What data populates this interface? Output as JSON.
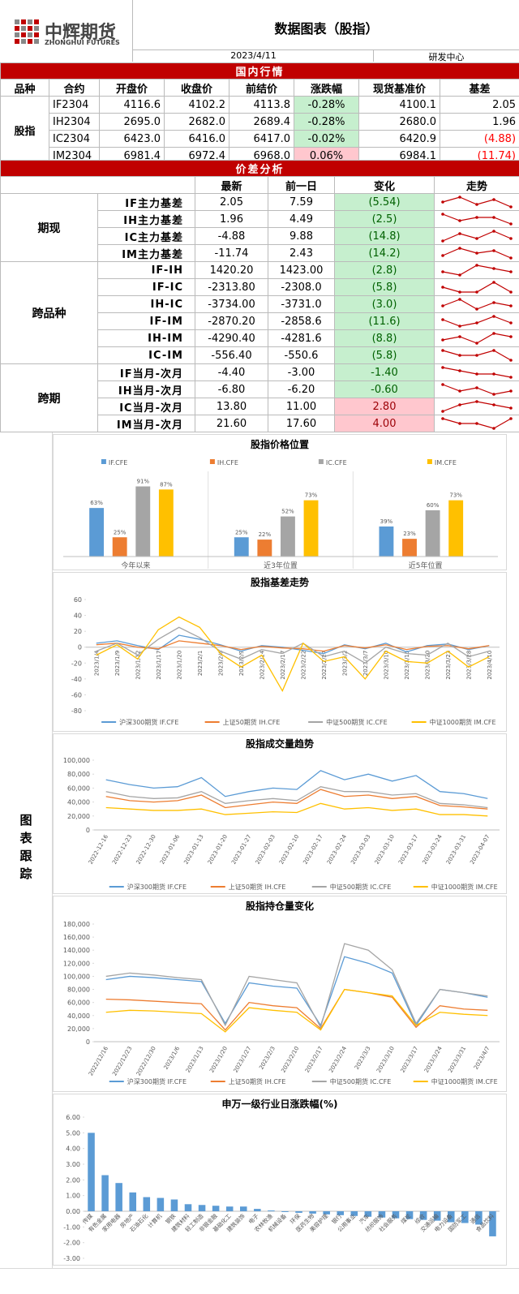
{
  "header": {
    "logo": "中辉期货",
    "logo_en": "ZHONGHUI FUTURES",
    "title": "数据图表（股指）",
    "date": "2023/4/11",
    "dept": "研发中心"
  },
  "market": {
    "title": "国内行情",
    "columns": [
      "品种",
      "合约",
      "开盘价",
      "收盘价",
      "前结价",
      "涨跌幅",
      "现货基准价",
      "基差"
    ],
    "group": "股指",
    "rows": [
      [
        "IF2304",
        "4116.6",
        "4102.2",
        "4113.8",
        "-0.28%",
        "4100.1",
        "2.05"
      ],
      [
        "IH2304",
        "2695.0",
        "2682.0",
        "2689.4",
        "-0.28%",
        "2680.0",
        "1.96"
      ],
      [
        "IC2304",
        "6423.0",
        "6416.0",
        "6417.0",
        "-0.02%",
        "6420.9",
        "(4.88)"
      ],
      [
        "IM2304",
        "6981.4",
        "6972.4",
        "6968.0",
        "0.06%",
        "6984.1",
        "(11.74)"
      ]
    ],
    "change_colors": [
      "#c6efce",
      "#c6efce",
      "#c6efce",
      "#ffc7ce"
    ],
    "basis_colors": [
      "#000000",
      "#000000",
      "#ff0000",
      "#ff0000"
    ]
  },
  "spread": {
    "title": "价差分析",
    "columns": [
      "最新",
      "前一日",
      "变化",
      "走势"
    ],
    "groups": [
      {
        "name": "期现",
        "rows": [
          {
            "label": "IF主力基差",
            "latest": "2.05",
            "prev": "7.59",
            "change": "(5.54)",
            "bg": "#c6efce",
            "fg": "#006100",
            "trend": [
              3,
              5,
              2,
              4,
              1
            ]
          },
          {
            "label": "IH主力基差",
            "latest": "1.96",
            "prev": "4.49",
            "change": "(2.5)",
            "bg": "#c6efce",
            "fg": "#006100",
            "trend": [
              4,
              2,
              3,
              3,
              1
            ]
          },
          {
            "label": "IC主力基差",
            "latest": "-4.88",
            "prev": "9.88",
            "change": "(14.8)",
            "bg": "#c6efce",
            "fg": "#006100",
            "trend": [
              1,
              4,
              2,
              5,
              2
            ]
          },
          {
            "label": "IM主力基差",
            "latest": "-11.74",
            "prev": "2.43",
            "change": "(14.2)",
            "bg": "#c6efce",
            "fg": "#006100",
            "trend": [
              2,
              5,
              3,
              4,
              1
            ]
          }
        ]
      },
      {
        "name": "跨品种",
        "rows": [
          {
            "label": "IF-IH",
            "latest": "1420.20",
            "prev": "1423.00",
            "change": "(2.8)",
            "bg": "#c6efce",
            "fg": "#006100",
            "trend": [
              2,
              1,
              4,
              3,
              2
            ]
          },
          {
            "label": "IF-IC",
            "latest": "-2313.80",
            "prev": "-2308.0",
            "change": "(5.8)",
            "bg": "#c6efce",
            "fg": "#006100",
            "trend": [
              3,
              2,
              2,
              4,
              2
            ]
          },
          {
            "label": "IH-IC",
            "latest": "-3734.00",
            "prev": "-3731.0",
            "change": "(3.0)",
            "bg": "#c6efce",
            "fg": "#006100",
            "trend": [
              2,
              4,
              1,
              3,
              2
            ]
          },
          {
            "label": "IF-IM",
            "latest": "-2870.20",
            "prev": "-2858.6",
            "change": "(11.6)",
            "bg": "#c6efce",
            "fg": "#006100",
            "trend": [
              3,
              1,
              2,
              4,
              2
            ]
          },
          {
            "label": "IH-IM",
            "latest": "-4290.40",
            "prev": "-4281.6",
            "change": "(8.8)",
            "bg": "#c6efce",
            "fg": "#006100",
            "trend": [
              2,
              3,
              1,
              4,
              3
            ]
          },
          {
            "label": "IC-IM",
            "latest": "-556.40",
            "prev": "-550.6",
            "change": "(5.8)",
            "bg": "#c6efce",
            "fg": "#006100",
            "trend": [
              4,
              3,
              3,
              4,
              2
            ]
          }
        ]
      },
      {
        "name": "跨期",
        "rows": [
          {
            "label": "IF当月-次月",
            "latest": "-4.40",
            "prev": "-3.00",
            "change": "-1.40",
            "bg": "#c6efce",
            "fg": "#006100",
            "trend": [
              4,
              3,
              2,
              2,
              1
            ]
          },
          {
            "label": "IH当月-次月",
            "latest": "-6.80",
            "prev": "-6.20",
            "change": "-0.60",
            "bg": "#c6efce",
            "fg": "#006100",
            "trend": [
              4,
              2,
              3,
              1,
              2
            ]
          },
          {
            "label": "IC当月-次月",
            "latest": "13.80",
            "prev": "11.00",
            "change": "2.80",
            "bg": "#ffc7ce",
            "fg": "#9c0006",
            "trend": [
              1,
              3,
              4,
              3,
              2
            ]
          },
          {
            "label": "IM当月-次月",
            "latest": "21.60",
            "prev": "17.60",
            "change": "4.00",
            "bg": "#ffc7ce",
            "fg": "#9c0006",
            "trend": [
              3,
              2,
              2,
              1,
              3
            ]
          }
        ]
      }
    ]
  },
  "side_label": "图表跟踪",
  "charts": [
    {
      "type": "bar",
      "title": "股指价格位置",
      "categories": [
        "今年以来",
        "近3年位置",
        "近5年位置"
      ],
      "ylim": [
        0,
        100
      ],
      "series": [
        {
          "name": "IF.CFE",
          "color": "#5b9bd5",
          "values": [
            63,
            25,
            39
          ],
          "value_labels": [
            "63%",
            "25%",
            "39%"
          ]
        },
        {
          "name": "IH.CFE",
          "color": "#ed7d31",
          "values": [
            25,
            22,
            23
          ],
          "value_labels": [
            "25%",
            "22%",
            "23%"
          ]
        },
        {
          "name": "IC.CFE",
          "color": "#a5a5a5",
          "values": [
            91,
            52,
            60
          ],
          "value_labels": [
            "91%",
            "52%",
            "60%"
          ]
        },
        {
          "name": "IM.CFE",
          "color": "#ffc000",
          "values": [
            87,
            73,
            73
          ],
          "value_labels": [
            "87%",
            "73%",
            "73%"
          ]
        }
      ]
    },
    {
      "type": "line",
      "title": "股指基差走势",
      "grid": false,
      "categories": [
        "2023/1/4",
        "2023/1/9",
        "2023/1/12",
        "2023/1/17",
        "2023/1/20",
        "2023/2/1",
        "2023/2/6",
        "2023/2/9",
        "2023/2/14",
        "2023/2/17",
        "2023/2/22",
        "2023/2/27",
        "2023/3/2",
        "2023/3/7",
        "2023/3/10",
        "2023/3/15",
        "2023/3/20",
        "2023/3/23",
        "2023/3/28",
        "2023/4/10"
      ],
      "ylim": [
        -80,
        60
      ],
      "yticks": [
        -80,
        -60,
        -40,
        -20,
        0,
        20,
        40,
        60
      ],
      "series": [
        {
          "name": "沪深300期货 IF.CFE",
          "color": "#5b9bd5",
          "values": [
            5,
            8,
            2,
            -3,
            15,
            10,
            3,
            -5,
            2,
            0,
            -4,
            -8,
            3,
            -2,
            5,
            -6,
            2,
            4,
            -3,
            2
          ]
        },
        {
          "name": "上证50期货 IH.CFE",
          "color": "#ed7d31",
          "values": [
            3,
            5,
            0,
            -2,
            8,
            5,
            2,
            -3,
            1,
            -1,
            -2,
            -5,
            2,
            -1,
            3,
            -3,
            1,
            2,
            -2,
            2
          ]
        },
        {
          "name": "中证500期货 IC.CFE",
          "color": "#a5a5a5",
          "values": [
            -5,
            5,
            -10,
            10,
            25,
            12,
            -5,
            -15,
            -3,
            -8,
            5,
            -12,
            -5,
            -20,
            0,
            -8,
            -10,
            5,
            -12,
            -5
          ]
        },
        {
          "name": "中证1000期货 IM.CFE",
          "color": "#ffc000",
          "values": [
            -10,
            3,
            -15,
            22,
            38,
            25,
            -8,
            -25,
            -10,
            -55,
            5,
            -18,
            -12,
            -40,
            -5,
            -18,
            -20,
            -5,
            -25,
            -12
          ]
        }
      ]
    },
    {
      "type": "line",
      "title": "股指成交量趋势",
      "grid": false,
      "categories": [
        "2022-12-16",
        "2022-12-23",
        "2022-12-30",
        "2023-01-06",
        "2023-01-13",
        "2023-01-20",
        "2023-01-27",
        "2023-02-03",
        "2023-02-10",
        "2023-02-17",
        "2023-02-24",
        "2023-03-03",
        "2023-03-10",
        "2023-03-17",
        "2023-03-24",
        "2023-03-31",
        "2023-04-07"
      ],
      "ylim": [
        0,
        100000
      ],
      "yticks": [
        0,
        {
          "value": 20000,
          "label": "20,000"
        },
        {
          "value": 40000,
          "label": "40,000"
        },
        {
          "value": 60000,
          "label": "60,000"
        },
        {
          "value": 80000,
          "label": "80,000"
        },
        {
          "value": 100000,
          "label": "100,000"
        }
      ],
      "series": [
        {
          "name": "沪深300期货 IF.CFE",
          "color": "#5b9bd5",
          "values": [
            72000,
            65000,
            60000,
            62000,
            75000,
            48000,
            55000,
            60000,
            58000,
            85000,
            72000,
            80000,
            70000,
            78000,
            55000,
            52000,
            45000
          ]
        },
        {
          "name": "上证50期货 IH.CFE",
          "color": "#ed7d31",
          "values": [
            48000,
            42000,
            40000,
            42000,
            50000,
            32000,
            36000,
            40000,
            38000,
            58000,
            48000,
            50000,
            45000,
            48000,
            35000,
            33000,
            30000
          ]
        },
        {
          "name": "中证500期货 IC.CFE",
          "color": "#a5a5a5",
          "values": [
            55000,
            48000,
            45000,
            46000,
            55000,
            38000,
            42000,
            45000,
            42000,
            62000,
            55000,
            55000,
            50000,
            52000,
            38000,
            36000,
            32000
          ]
        },
        {
          "name": "中证1000期货 IM.CFE",
          "color": "#ffc000",
          "values": [
            32000,
            30000,
            28000,
            28000,
            30000,
            22000,
            24000,
            26000,
            25000,
            38000,
            30000,
            32000,
            28000,
            30000,
            22000,
            22000,
            20000
          ]
        }
      ]
    },
    {
      "type": "line",
      "title": "股指持仓量变化",
      "grid": false,
      "categories": [
        "2022/12/16",
        "2022/12/23",
        "2022/12/30",
        "2023/1/6",
        "2023/1/13",
        "2023/1/20",
        "2023/1/27",
        "2023/2/3",
        "2023/2/10",
        "2023/2/17",
        "2023/2/24",
        "2023/3/3",
        "2023/3/10",
        "2023/3/17",
        "2023/3/24",
        "2023/3/31",
        "2023/4/7"
      ],
      "ylim": [
        0,
        180000
      ],
      "yticks": [
        0,
        {
          "value": 20000,
          "label": "20,000"
        },
        {
          "value": 40000,
          "label": "40,000"
        },
        {
          "value": 60000,
          "label": "60,000"
        },
        {
          "value": 80000,
          "label": "80,000"
        },
        {
          "value": 100000,
          "label": "100,000"
        },
        {
          "value": 120000,
          "label": "120,000"
        },
        {
          "value": 140000,
          "label": "140,000"
        },
        {
          "value": 160000,
          "label": "160,000"
        },
        {
          "value": 180000,
          "label": "180,000"
        }
      ],
      "series": [
        {
          "name": "沪深300期货 IF.CFE",
          "color": "#5b9bd5",
          "values": [
            95000,
            100000,
            98000,
            95000,
            92000,
            28000,
            90000,
            85000,
            82000,
            25000,
            130000,
            120000,
            105000,
            25000,
            80000,
            75000,
            68000
          ]
        },
        {
          "name": "上证50期货 IH.CFE",
          "color": "#ed7d31",
          "values": [
            65000,
            64000,
            62000,
            60000,
            58000,
            18000,
            60000,
            55000,
            52000,
            20000,
            80000,
            75000,
            68000,
            22000,
            55000,
            50000,
            48000
          ]
        },
        {
          "name": "中证500期货 IC.CFE",
          "color": "#a5a5a5",
          "values": [
            100000,
            105000,
            102000,
            98000,
            95000,
            25000,
            100000,
            95000,
            90000,
            22000,
            150000,
            140000,
            110000,
            28000,
            80000,
            75000,
            70000
          ]
        },
        {
          "name": "中证1000期货 IM.CFE",
          "color": "#ffc000",
          "values": [
            45000,
            48000,
            47000,
            45000,
            43000,
            15000,
            52000,
            48000,
            45000,
            18000,
            80000,
            75000,
            70000,
            25000,
            45000,
            42000,
            40000
          ]
        }
      ]
    },
    {
      "type": "bar",
      "title": "申万一级行业日涨跌幅(%)",
      "color": "#5b9bd5",
      "categories": [
        "传媒",
        "有色金属",
        "家用电器",
        "房地产",
        "石油石化",
        "计算机",
        "钢铁",
        "建筑材料",
        "轻工制造",
        "非银金融",
        "基础化工",
        "建筑装饰",
        "电子",
        "农林牧渔",
        "机械设备",
        "环保",
        "医药生物",
        "美容护理",
        "银行",
        "公用事业",
        "汽车",
        "纺织服饰",
        "社会服务",
        "煤炭",
        "综合",
        "交通运输",
        "电力设备",
        "国防军工",
        "通信",
        "食品饮料"
      ],
      "values": [
        5.0,
        2.3,
        1.8,
        1.2,
        0.9,
        0.85,
        0.75,
        0.45,
        0.4,
        0.35,
        0.3,
        0.3,
        0.15,
        0.05,
        -0.05,
        -0.1,
        -0.15,
        -0.2,
        -0.25,
        -0.3,
        -0.35,
        -0.4,
        -0.45,
        -0.5,
        -0.55,
        -0.6,
        -0.7,
        -0.75,
        -0.85,
        -1.6
      ],
      "ylim": [
        -3,
        6
      ],
      "yticks": [
        {
          "value": -3,
          "label": "-3.00"
        },
        {
          "value": -2,
          "label": "-2.00"
        },
        {
          "value": -1,
          "label": "-1.00"
        },
        {
          "value": 0,
          "label": "0.00"
        },
        {
          "value": 1,
          "label": "1.00"
        },
        {
          "value": 2,
          "label": "2.00"
        },
        {
          "value": 3,
          "label": "3.00"
        },
        {
          "value": 4,
          "label": "4.00"
        },
        {
          "value": 5,
          "label": "5.00"
        },
        {
          "value": 6,
          "label": "6.00"
        }
      ]
    }
  ]
}
